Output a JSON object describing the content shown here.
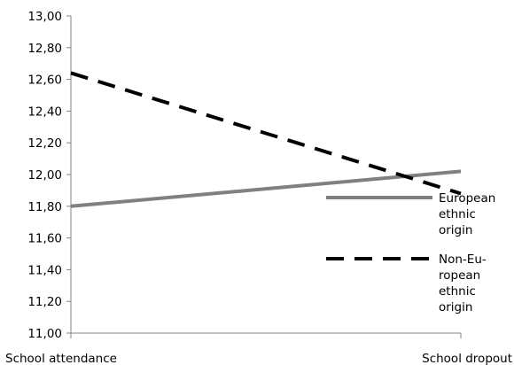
{
  "chart_data": {
    "type": "line",
    "title": "",
    "xlabel": "",
    "ylabel": "",
    "categories": [
      "School attendance",
      "School dropout"
    ],
    "y_ticks": [
      "11,00",
      "11,20",
      "11,40",
      "11,60",
      "11,80",
      "12,00",
      "12,20",
      "12,40",
      "12,60",
      "12,80",
      "13,00"
    ],
    "ylim": [
      11.0,
      13.0
    ],
    "grid": false,
    "legend_position": "right",
    "series": [
      {
        "name": "European ethnic origin",
        "name_lines": [
          "European",
          "ethnic",
          "origin"
        ],
        "values": [
          11.8,
          12.02
        ],
        "color": "#808080",
        "style": "solid"
      },
      {
        "name": "Non-European ethnic origin",
        "name_lines": [
          "Non-Eu-",
          "ropean",
          "ethnic",
          "origin"
        ],
        "values": [
          12.64,
          11.88
        ],
        "color": "#000000",
        "style": "dashed"
      }
    ]
  }
}
